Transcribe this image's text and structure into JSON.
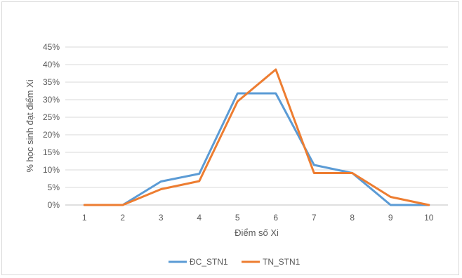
{
  "chart_data": {
    "type": "line",
    "title": "",
    "xlabel": "Điểm số Xi",
    "ylabel": "% học sinh đạt điểm Xi",
    "categories": [
      "1",
      "2",
      "3",
      "4",
      "5",
      "6",
      "7",
      "8",
      "9",
      "10"
    ],
    "yticks": [
      "0%",
      "5%",
      "10%",
      "15%",
      "20%",
      "25%",
      "30%",
      "35%",
      "40%",
      "45%"
    ],
    "ylim": [
      0,
      45
    ],
    "y_unit": "%",
    "grid": "horizontal",
    "legend_position": "bottom",
    "series": [
      {
        "name": "ĐC_STN1",
        "color": "#5b9bd5",
        "values": [
          0,
          0,
          6.7,
          8.9,
          31.8,
          31.8,
          11.4,
          9.1,
          0,
          0
        ]
      },
      {
        "name": "TN_STN1",
        "color": "#ed7d31",
        "values": [
          0,
          0,
          4.5,
          6.8,
          29.5,
          38.6,
          9.1,
          9.1,
          2.3,
          0
        ]
      }
    ]
  }
}
